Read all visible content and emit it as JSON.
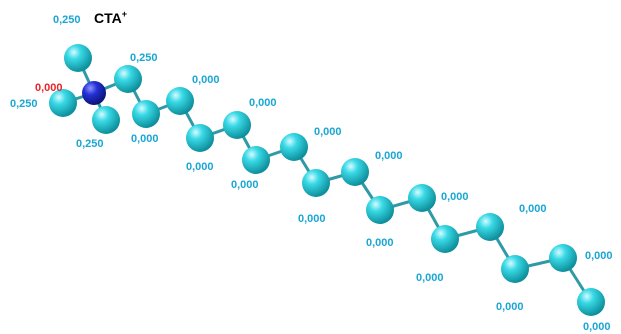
{
  "title": "CTA",
  "title_superscript": "+",
  "colors": {
    "carbon": "#22c7d6",
    "nitrogen": "#1a22c8",
    "bond": "#2f9aa6",
    "label_carbon": "#1aa6d4",
    "label_nitrogen": "#e8232a"
  },
  "atoms": [
    {
      "element": "N",
      "label": "0,000"
    },
    {
      "element": "C",
      "label": "0,250"
    },
    {
      "element": "C",
      "label": "0,250"
    },
    {
      "element": "C",
      "label": "0,250"
    },
    {
      "element": "C",
      "label": "0,250"
    },
    {
      "element": "C",
      "label": "0,000"
    },
    {
      "element": "C",
      "label": "0,000"
    },
    {
      "element": "C",
      "label": "0,000"
    },
    {
      "element": "C",
      "label": "0,000"
    },
    {
      "element": "C",
      "label": "0,000"
    },
    {
      "element": "C",
      "label": "0,000"
    },
    {
      "element": "C",
      "label": "0,000"
    },
    {
      "element": "C",
      "label": "0,000"
    },
    {
      "element": "C",
      "label": "0,000"
    },
    {
      "element": "C",
      "label": "0,000"
    },
    {
      "element": "C",
      "label": "0,000"
    },
    {
      "element": "C",
      "label": "0,000"
    },
    {
      "element": "C",
      "label": "0,000"
    },
    {
      "element": "C",
      "label": "0,000"
    },
    {
      "element": "C",
      "label": "0,000"
    },
    {
      "element": "C",
      "label": "0,000"
    }
  ]
}
